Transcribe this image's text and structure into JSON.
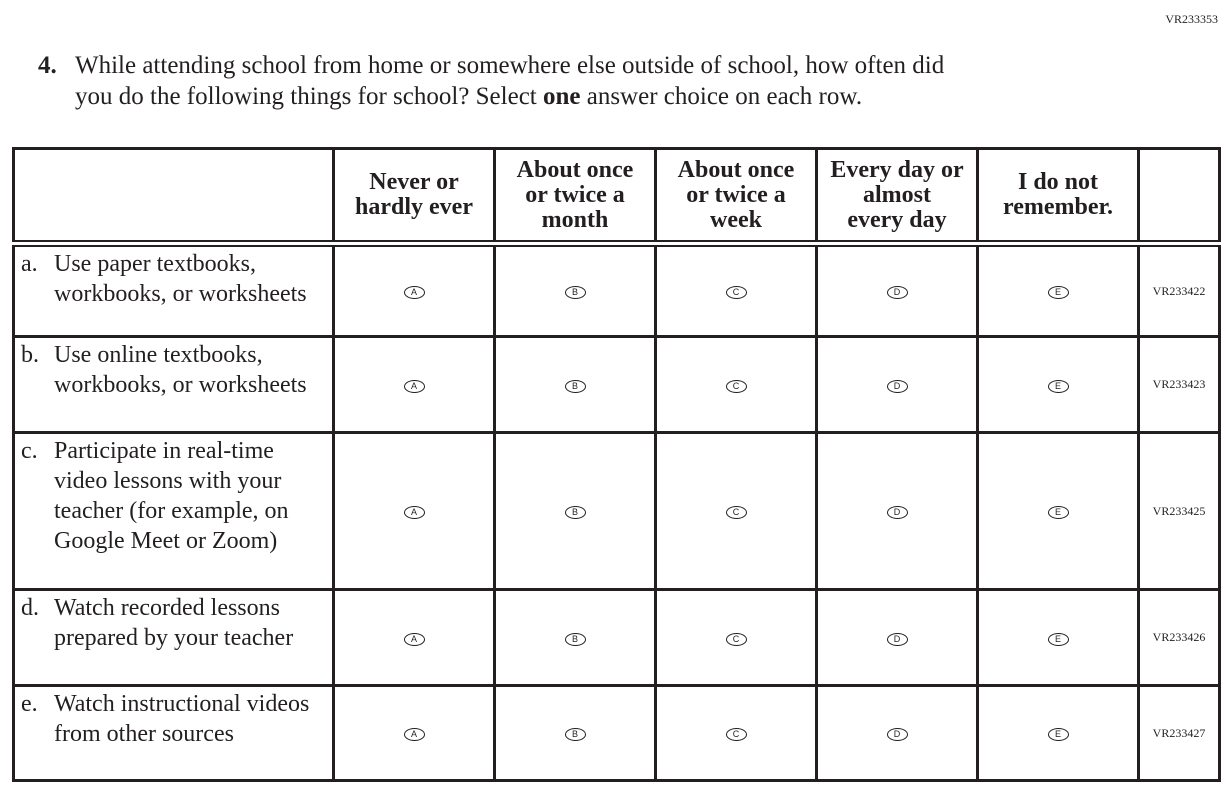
{
  "page_code": "VR233353",
  "question": {
    "number": "4.",
    "line1": "While attending school from home or somewhere else outside of school, how often did",
    "line2_pre": "you do the following things for school? Select ",
    "line2_bold": "one",
    "line2_post": " answer choice on each row."
  },
  "columns": [
    [
      "Never or",
      "hardly ever"
    ],
    [
      "About once",
      "or twice a",
      "month"
    ],
    [
      "About once",
      "or twice a",
      "week"
    ],
    [
      "Every day or",
      "almost",
      "every day"
    ],
    [
      "I do not",
      "remember."
    ]
  ],
  "options": [
    "A",
    "B",
    "C",
    "D",
    "E"
  ],
  "rows": [
    {
      "letter": "a.",
      "text": "Use paper textbooks, workbooks, or worksheets",
      "code": "VR233422"
    },
    {
      "letter": "b.",
      "text": "Use online textbooks, workbooks, or worksheets",
      "code": "VR233423"
    },
    {
      "letter": "c.",
      "text": "Participate in real-time video lessons with your teacher (for example, on Google Meet or Zoom)",
      "code": "VR233425"
    },
    {
      "letter": "d.",
      "text": "Watch recorded lessons prepared by your teacher",
      "code": "VR233426"
    },
    {
      "letter": "e.",
      "text": "Watch instructional videos from other sources",
      "code": "VR233427"
    }
  ]
}
